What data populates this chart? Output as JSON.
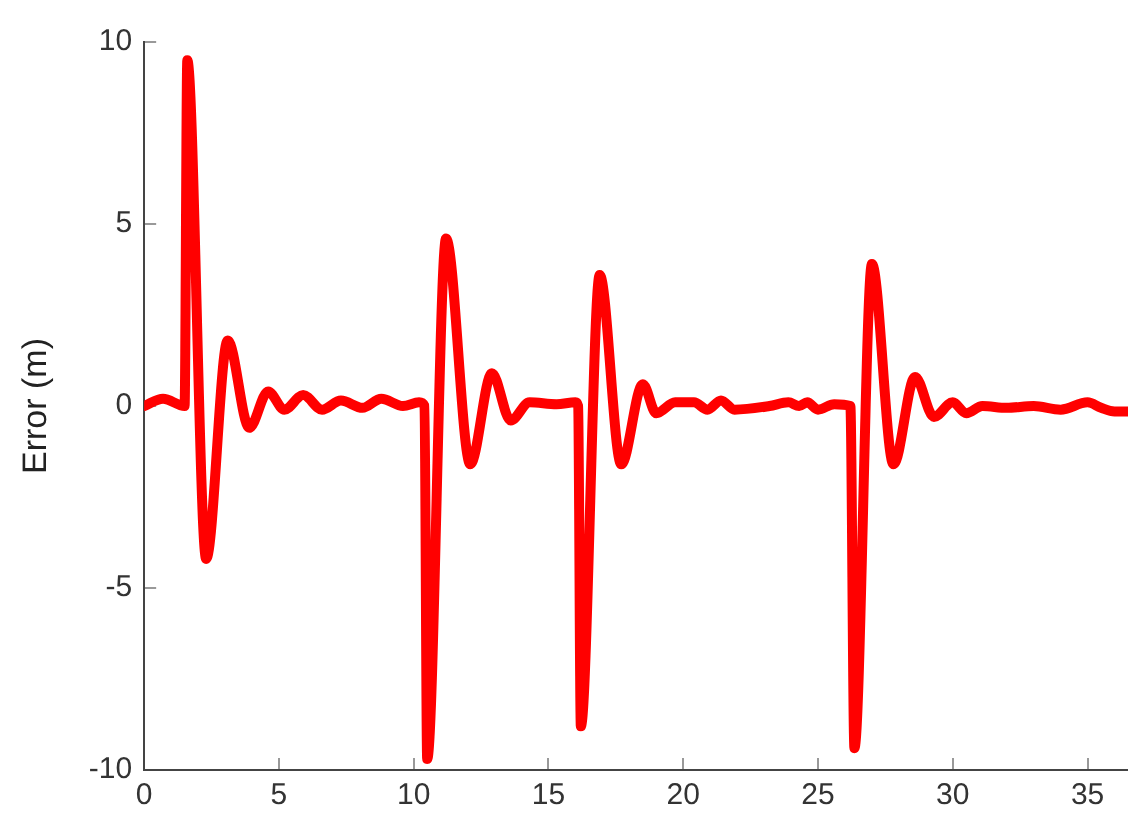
{
  "chart_data": {
    "type": "line",
    "ylabel": "Error (m)",
    "xlim": [
      0,
      36.5
    ],
    "xticks": [
      0,
      5,
      10,
      15,
      20,
      25,
      30,
      35
    ],
    "ylim": [
      -10,
      10
    ],
    "yticks": [
      10,
      5,
      0,
      -5,
      -10
    ],
    "grid": false,
    "legend": false,
    "marker": "none",
    "line_style": "solid",
    "series": [
      {
        "color": "#ff0000",
        "x": [
          0,
          0.7,
          1.5,
          1.6,
          2.3,
          3.1,
          3.9,
          4.6,
          5.2,
          5.9,
          6.6,
          7.3,
          8.1,
          8.8,
          9.6,
          10.2,
          10.4,
          10.5,
          11.2,
          12.1,
          12.9,
          13.6,
          14.3,
          15.3,
          16.0,
          16.1,
          16.2,
          16.9,
          17.7,
          18.5,
          19.0,
          19.7,
          20.4,
          20.9,
          21.4,
          21.9,
          23.2,
          23.9,
          24.3,
          24.6,
          25.0,
          25.6,
          26.2,
          26.35,
          27.0,
          27.8,
          28.6,
          29.3,
          30.0,
          30.5,
          31.1,
          32,
          33,
          34,
          35,
          35.5,
          36,
          36.5
        ],
        "values": [
          0,
          0.2,
          0,
          9.5,
          -4.2,
          1.8,
          -0.6,
          0.4,
          -0.1,
          0.3,
          -0.1,
          0.15,
          -0.05,
          0.2,
          0,
          0.1,
          0,
          -9.7,
          4.6,
          -1.6,
          0.9,
          -0.4,
          0.1,
          0.05,
          0.1,
          0,
          -8.8,
          3.6,
          -1.6,
          0.6,
          -0.2,
          0.1,
          0.1,
          -0.1,
          0.15,
          -0.1,
          0,
          0.1,
          0,
          0.1,
          -0.1,
          0.05,
          0,
          -9.4,
          3.9,
          -1.6,
          0.8,
          -0.3,
          0.1,
          -0.2,
          0,
          -0.05,
          0,
          -0.1,
          0.1,
          -0.05,
          -0.15,
          -0.15
        ]
      }
    ]
  }
}
